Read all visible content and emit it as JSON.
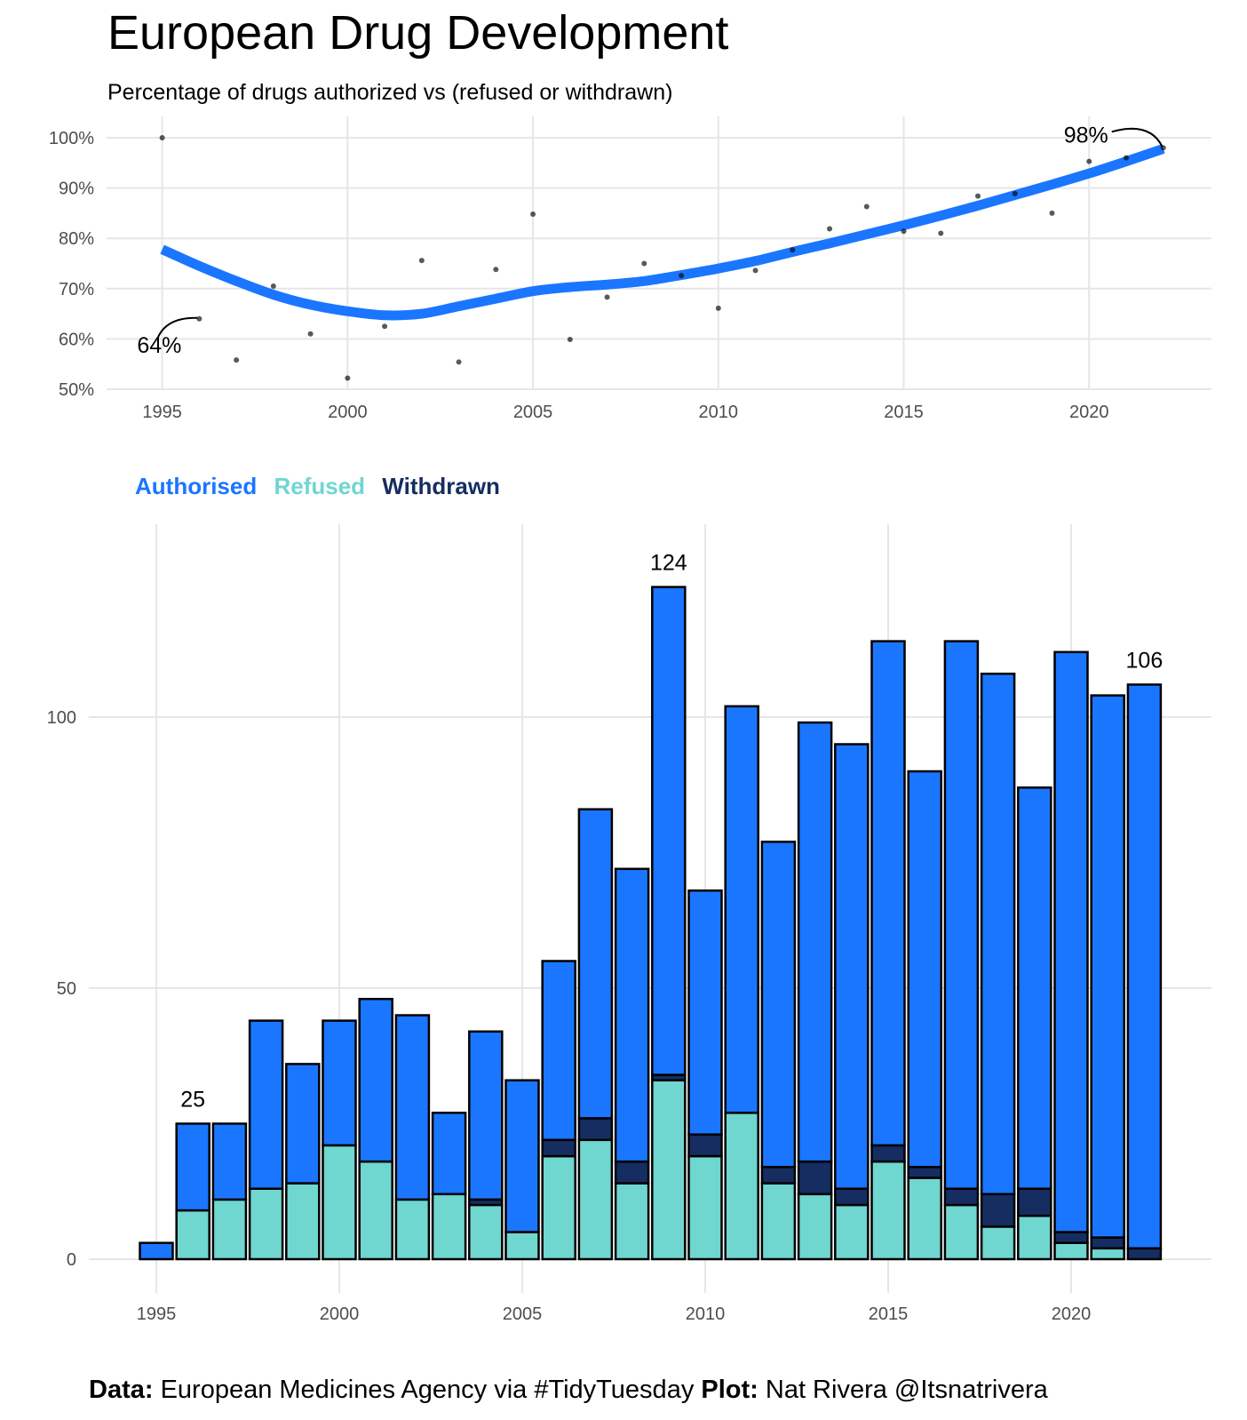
{
  "title": "European Drug Development",
  "subtitle": "Percentage of drugs authorized vs (refused or withdrawn)",
  "colors": {
    "authorised": "#1a76ff",
    "refused": "#6fd6d0",
    "withdrawn": "#152d61",
    "trend": "#1a76ff",
    "grid": "#e6e6e6"
  },
  "legend": {
    "authorised": "Authorised",
    "refused": "Refused",
    "withdrawn": "Withdrawn"
  },
  "caption": {
    "data_label": "Data:",
    "data_text": " European Medicines Agency via #TidyTuesday ",
    "plot_label": "Plot:",
    "plot_text": " Nat Rivera @Itsnatrivera"
  },
  "chart_data": [
    {
      "type": "scatter",
      "x_ticks": [
        1995,
        2000,
        2005,
        2010,
        2015,
        2020
      ],
      "y_ticks": [
        50,
        60,
        70,
        80,
        90,
        100
      ],
      "y_tick_labels": [
        "50%",
        "60%",
        "70%",
        "80%",
        "90%",
        "100%"
      ],
      "xlim": [
        1993.5,
        2023.3
      ],
      "ylim": [
        50,
        100
      ],
      "points": [
        [
          1995,
          100
        ],
        [
          1996,
          64
        ],
        [
          1997,
          55.8
        ],
        [
          1998,
          70.5
        ],
        [
          1999,
          61
        ],
        [
          2000,
          52.2
        ],
        [
          2001,
          62.5
        ],
        [
          2002,
          75.6
        ],
        [
          2003,
          55.4
        ],
        [
          2004,
          73.8
        ],
        [
          2005,
          84.8
        ],
        [
          2006,
          59.9
        ],
        [
          2007,
          68.3
        ],
        [
          2008,
          75
        ],
        [
          2009,
          72.6
        ],
        [
          2010,
          66.1
        ],
        [
          2011,
          73.6
        ],
        [
          2012,
          77.7
        ],
        [
          2013,
          81.9
        ],
        [
          2014,
          86.3
        ],
        [
          2015,
          81.4
        ],
        [
          2016,
          81
        ],
        [
          2017,
          88.4
        ],
        [
          2018,
          88.9
        ],
        [
          2019,
          85
        ],
        [
          2020,
          95.3
        ],
        [
          2021,
          96
        ],
        [
          2022,
          98
        ]
      ],
      "trend": [
        [
          1995,
          77.8
        ],
        [
          1996,
          74.5
        ],
        [
          1997,
          71.5
        ],
        [
          1998,
          68.8
        ],
        [
          1999,
          66.8
        ],
        [
          2000,
          65.5
        ],
        [
          2001,
          64.7
        ],
        [
          2002,
          65
        ],
        [
          2003,
          66.5
        ],
        [
          2004,
          68
        ],
        [
          2005,
          69.5
        ],
        [
          2006,
          70.3
        ],
        [
          2007,
          70.8
        ],
        [
          2008,
          71.5
        ],
        [
          2009,
          72.7
        ],
        [
          2010,
          74
        ],
        [
          2011,
          75.5
        ],
        [
          2012,
          77.3
        ],
        [
          2013,
          79
        ],
        [
          2014,
          80.8
        ],
        [
          2015,
          82.6
        ],
        [
          2016,
          84.5
        ],
        [
          2017,
          86.5
        ],
        [
          2018,
          88.6
        ],
        [
          2019,
          90.7
        ],
        [
          2020,
          92.9
        ],
        [
          2021,
          95.3
        ],
        [
          2022,
          97.8
        ]
      ],
      "annotations": [
        {
          "text": "64%",
          "x": 1996,
          "y": 64
        },
        {
          "text": "98%",
          "x": 2022,
          "y": 98
        }
      ]
    },
    {
      "type": "bar",
      "stacked": true,
      "x_ticks": [
        1995,
        2000,
        2005,
        2010,
        2015,
        2020
      ],
      "y_ticks": [
        0,
        50,
        100
      ],
      "xlim": [
        1993.2,
        2023.3
      ],
      "ylim": [
        0,
        133
      ],
      "x": [
        1995,
        1996,
        1997,
        1998,
        1999,
        2000,
        2001,
        2002,
        2003,
        2004,
        2005,
        2006,
        2007,
        2008,
        2009,
        2010,
        2011,
        2012,
        2013,
        2014,
        2015,
        2016,
        2017,
        2018,
        2019,
        2020,
        2021,
        2022
      ],
      "series": [
        {
          "name": "Refused",
          "values": [
            0,
            9,
            11,
            13,
            14,
            21,
            18,
            11,
            12,
            10,
            5,
            19,
            22,
            14,
            33,
            19,
            27,
            14,
            12,
            10,
            18,
            15,
            10,
            6,
            8,
            3,
            2,
            0
          ]
        },
        {
          "name": "Withdrawn",
          "values": [
            0,
            0,
            0,
            0,
            0,
            0,
            0,
            0,
            0,
            1,
            0,
            3,
            4,
            4,
            1,
            4,
            0,
            3,
            6,
            3,
            3,
            2,
            3,
            6,
            5,
            2,
            2,
            2
          ]
        },
        {
          "name": "Authorised",
          "values": [
            3,
            16,
            14,
            31,
            22,
            23,
            30,
            34,
            15,
            31,
            28,
            33,
            57,
            54,
            90,
            45,
            75,
            60,
            81,
            82,
            93,
            73,
            101,
            96,
            74,
            107,
            100,
            104
          ]
        }
      ],
      "annotations": [
        {
          "text": "25",
          "x": 1996,
          "y": 25
        },
        {
          "text": "124",
          "x": 2009,
          "y": 124
        },
        {
          "text": "106",
          "x": 2022,
          "y": 106
        }
      ]
    }
  ]
}
